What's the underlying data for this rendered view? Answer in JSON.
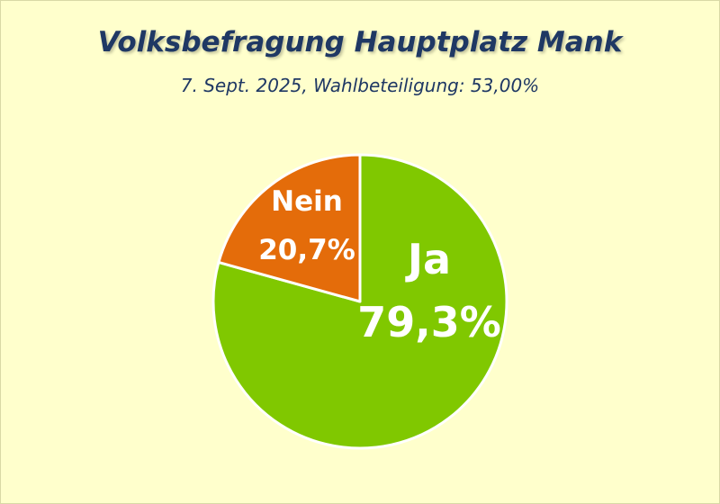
{
  "chart_data": {
    "type": "pie",
    "title": "Volksbefragung Hauptplatz Mank",
    "subtitle": "7. Sept. 2025, Wahlbeteiligung: 53,00%",
    "slices": [
      {
        "label": "Ja",
        "value": 79.3,
        "display": "79,3%",
        "color": "#80c800"
      },
      {
        "label": "Nein",
        "value": 20.7,
        "display": "20,7%",
        "color": "#e46c0a"
      }
    ]
  }
}
